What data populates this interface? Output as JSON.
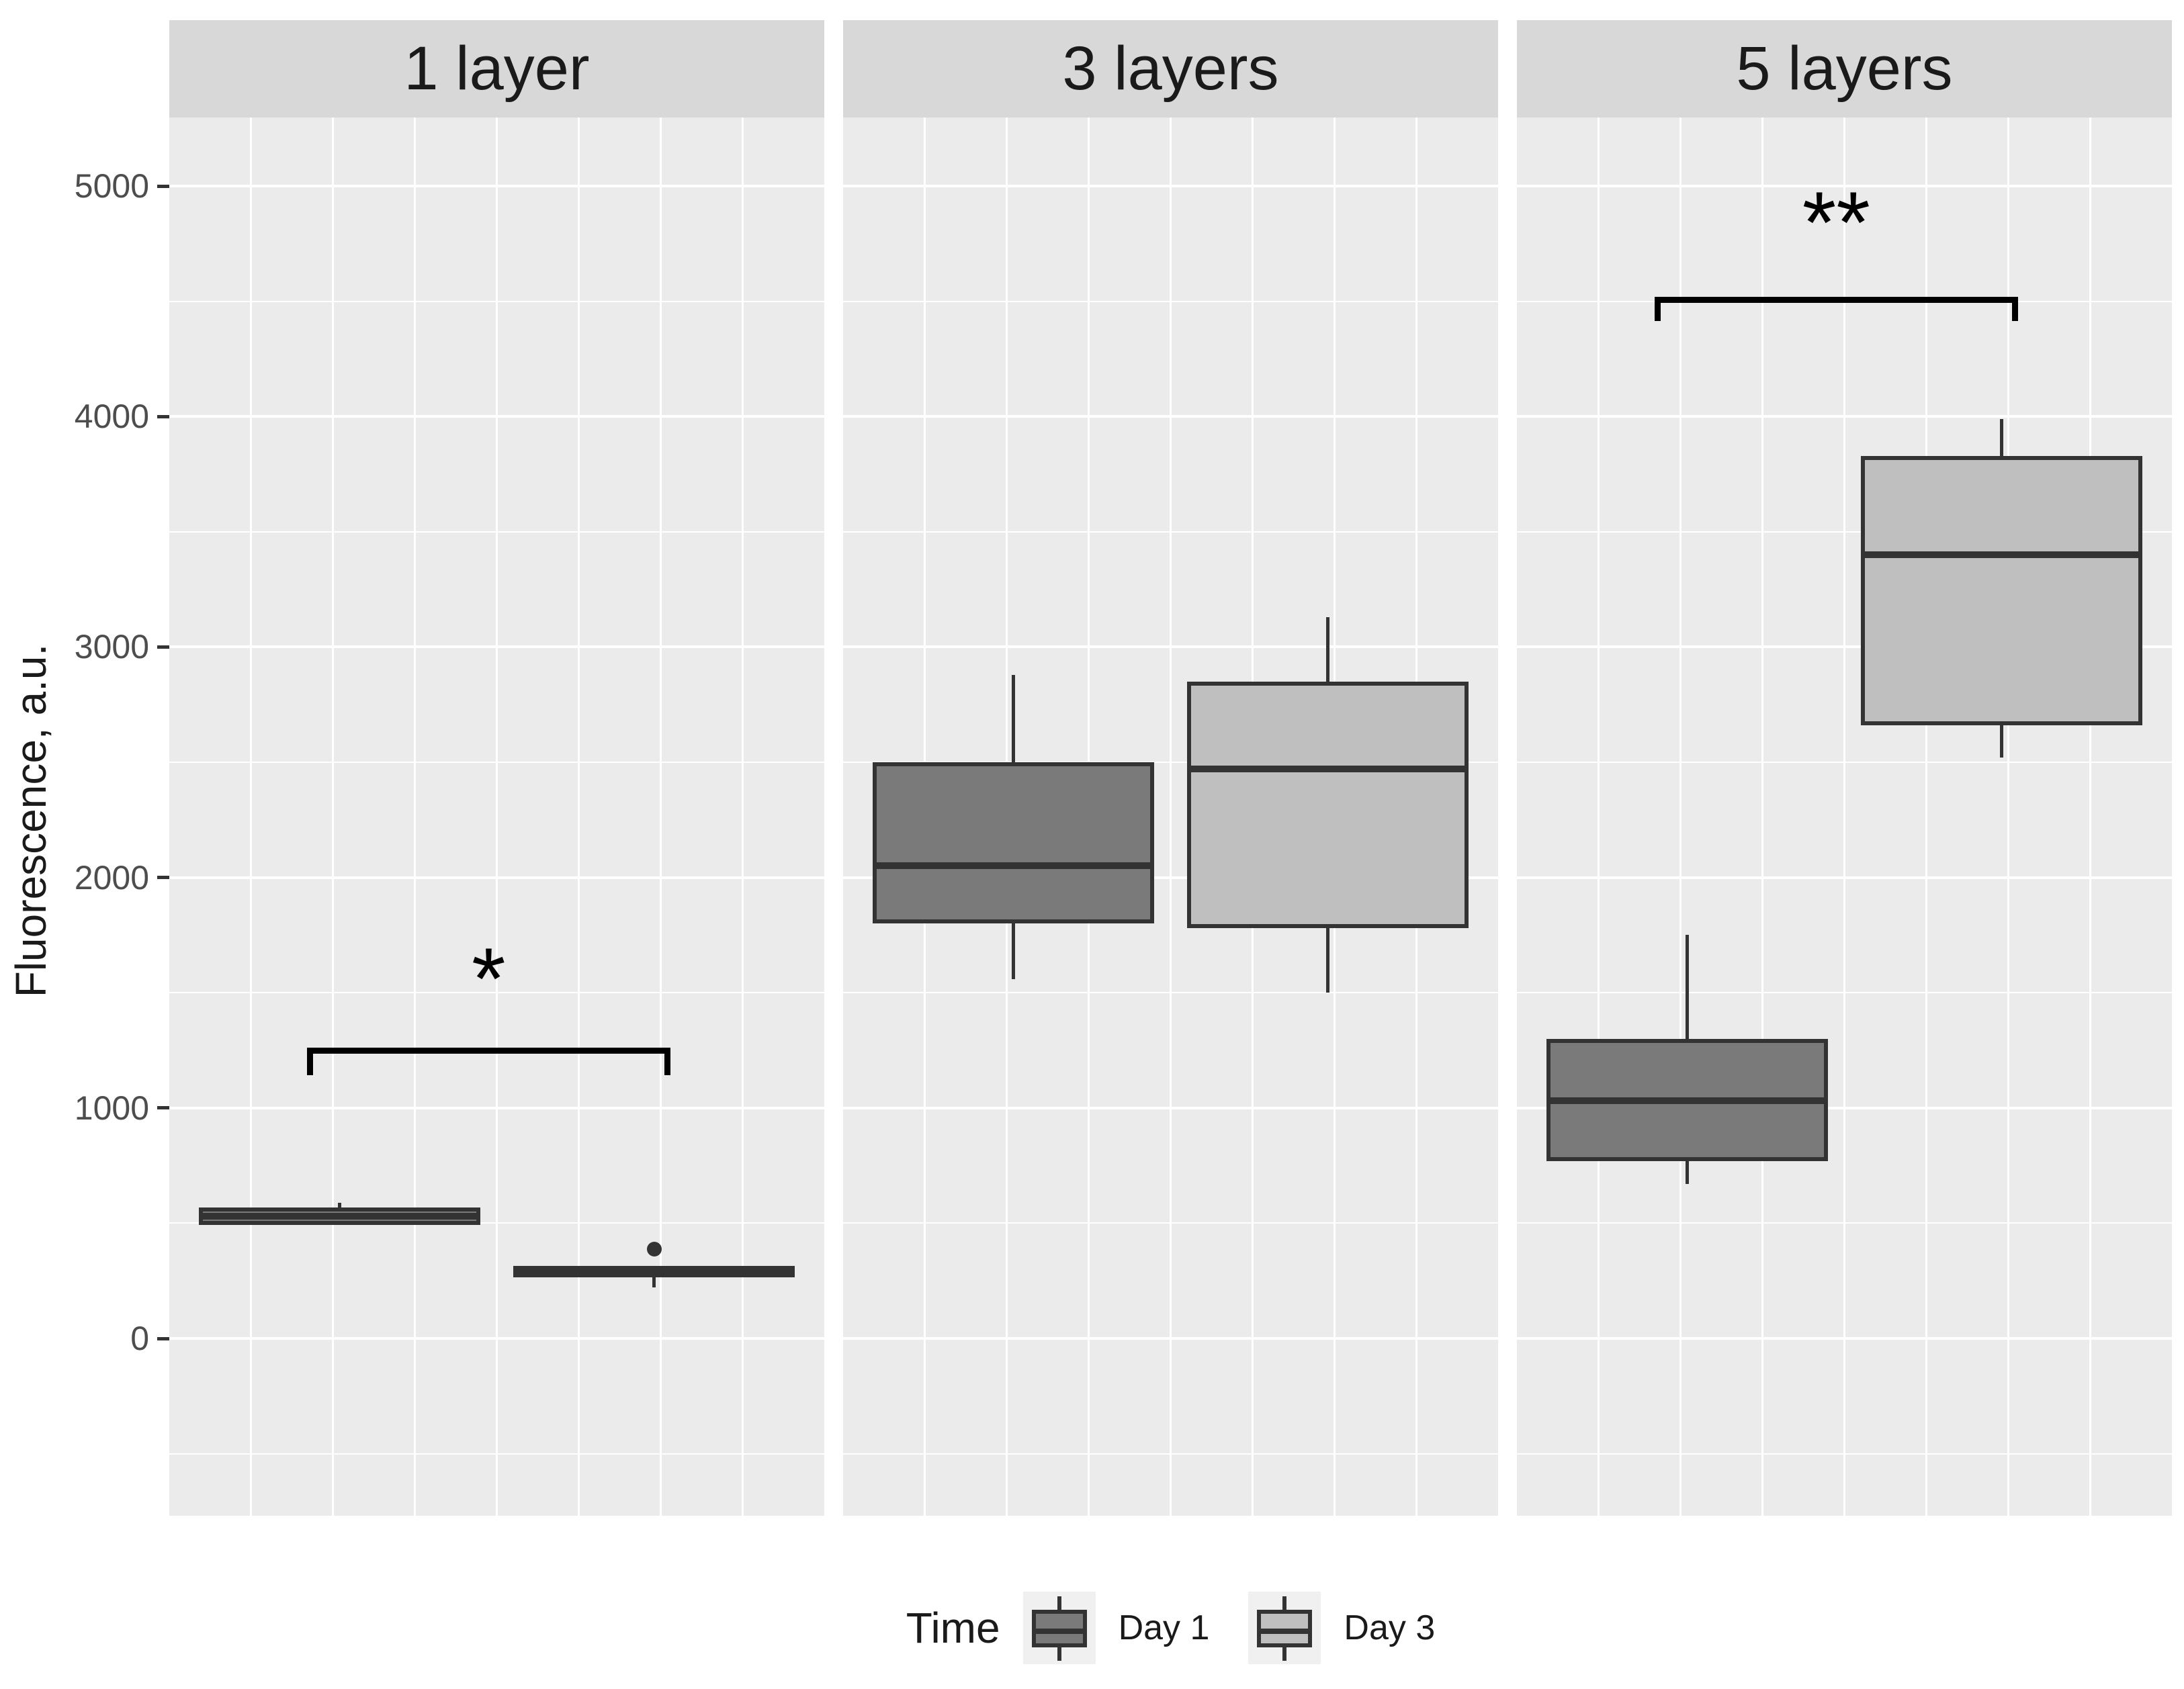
{
  "chart_data": {
    "type": "boxplot",
    "title": "",
    "ylabel": "Fluorescence, a.u.",
    "xlabel": "",
    "yticks": [
      0,
      1000,
      2000,
      3000,
      4000,
      5000
    ],
    "ylim": [
      -770,
      5300
    ],
    "grid": "white major and minor gridlines on gray panel background",
    "legend_position": "bottom",
    "facets": [
      {
        "label": "1 layer",
        "boxes": [
          {
            "group": "Day 1",
            "min": 490,
            "q1": 492,
            "median": 530,
            "q3": 568,
            "max": 590,
            "outliers": []
          },
          {
            "group": "Day 3",
            "min": 221,
            "q1": 265,
            "median": 288,
            "q3": 315,
            "max": 315,
            "outliers": [
              388
            ]
          }
        ],
        "significance": {
          "label": "*",
          "bar_y": 1262,
          "drop": 120,
          "label_y": 1600
        }
      },
      {
        "label": "3 layers",
        "boxes": [
          {
            "group": "Day 1",
            "min": 1560,
            "q1": 1800,
            "median": 2050,
            "q3": 2500,
            "max": 2880,
            "outliers": []
          },
          {
            "group": "Day 3",
            "min": 1500,
            "q1": 1780,
            "median": 2470,
            "q3": 2850,
            "max": 3130,
            "outliers": []
          }
        ],
        "significance": null
      },
      {
        "label": "5 layers",
        "boxes": [
          {
            "group": "Day 1",
            "min": 670,
            "q1": 770,
            "median": 1030,
            "q3": 1300,
            "max": 1750,
            "outliers": []
          },
          {
            "group": "Day 3",
            "min": 2520,
            "q1": 2660,
            "median": 3400,
            "q3": 3830,
            "max": 3990,
            "outliers": []
          }
        ],
        "significance": {
          "label": "**",
          "bar_y": 4520,
          "drop": 105,
          "label_y": 4880
        }
      }
    ],
    "legend": {
      "title": "Time",
      "entries": [
        {
          "label": "Day 1",
          "fill": "#7a7a7a"
        },
        {
          "label": "Day 3",
          "fill": "#bfbfbf"
        }
      ]
    },
    "colors": {
      "panel_background": "#ebebeb",
      "strip_background": "#d8d8d8",
      "gridline": "#ffffff",
      "box_border": "#333333",
      "tick_text": "#4d4d4d",
      "title_text": "#1a1a1a",
      "significance": "#000000",
      "legend_key_background": "#f0f0f0"
    }
  }
}
